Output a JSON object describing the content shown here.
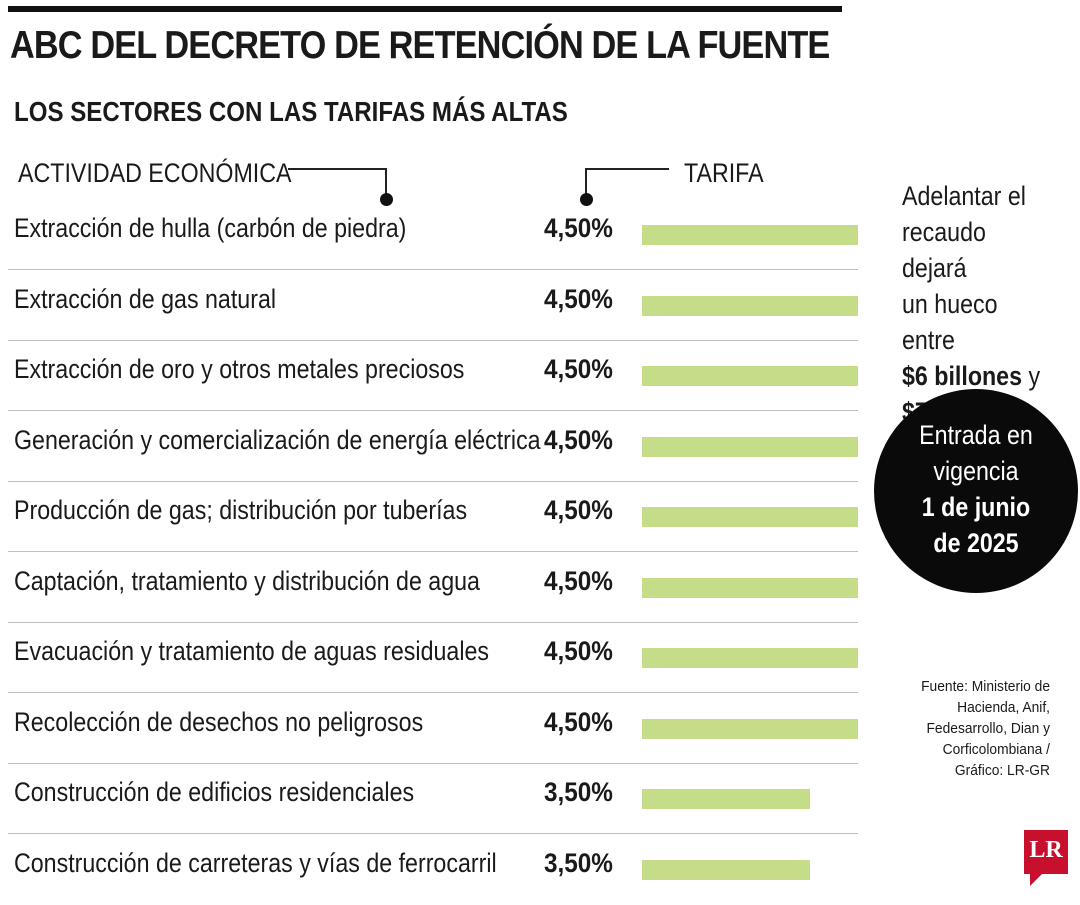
{
  "header": {
    "title": "ABC DEL DECRETO DE RETENCIÓN DE LA FUENTE",
    "subtitle": "LOS SECTORES CON LAS TARIFAS MÁS ALTAS"
  },
  "columns": {
    "activity": "ACTIVIDAD ECONÓMICA",
    "rate": "TARIFA"
  },
  "chart_data": {
    "type": "bar",
    "orientation": "horizontal",
    "title": "LOS SECTORES CON LAS TARIFAS MÁS ALTAS",
    "xlabel": "TARIFA",
    "ylabel": "ACTIVIDAD ECONÓMICA",
    "categories": [
      "Extracción de hulla (carbón de piedra)",
      "Extracción de gas natural",
      "Extracción de oro y otros metales preciosos",
      "Generación y comercialización de energía eléctrica",
      "Producción de gas; distribución por tuberías",
      "Captación, tratamiento y distribución de agua",
      "Evacuación y tratamiento de aguas residuales",
      "Recolección de desechos no peligrosos",
      "Construcción de edificios residenciales",
      "Construcción de carreteras y vías de ferrocarril"
    ],
    "values": [
      4.5,
      4.5,
      4.5,
      4.5,
      4.5,
      4.5,
      4.5,
      4.5,
      3.5,
      3.5
    ],
    "value_labels": [
      "4,50%",
      "4,50%",
      "4,50%",
      "4,50%",
      "4,50%",
      "4,50%",
      "4,50%",
      "4,50%",
      "3,50%",
      "3,50%"
    ],
    "xlim": [
      0,
      4.5
    ],
    "bar_color": "#c5dc88",
    "grid": false
  },
  "side_note": {
    "lines": [
      "Adelantar el",
      "recaudo dejará",
      "un hueco entre"
    ],
    "strong_a": "$6 billones",
    "connector": " y",
    "strong_b": "$7 billones"
  },
  "badge": {
    "lines": [
      "Entrada en",
      "vigencia",
      "1 de junio",
      "de 2025"
    ],
    "bold_from": 2
  },
  "source": {
    "lines": [
      "Fuente: Ministerio de",
      "Hacienda, Anif,",
      "Fedesarrollo, Dian y",
      "Corficolombiana /",
      "Gráfico: LR-GR"
    ]
  },
  "logo": {
    "text": "LR",
    "color": "#c8102e"
  }
}
